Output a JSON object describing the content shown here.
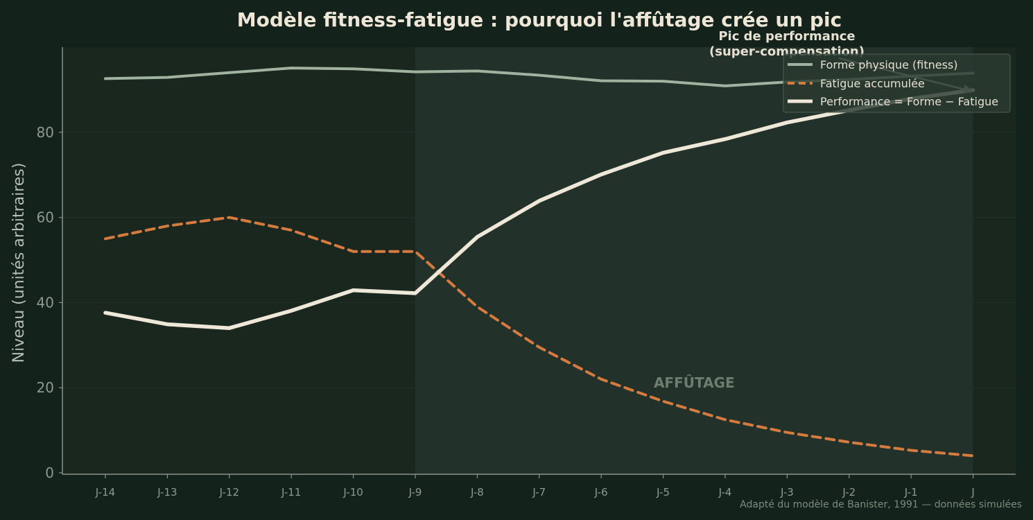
{
  "chart_data": {
    "type": "line",
    "title": "Modèle fitness-fatigue : pourquoi l'affûtage crée un pic",
    "ylabel": "Niveau (unités arbitraires)",
    "xlabel": "",
    "ylim": [
      0,
      100
    ],
    "yticks": [
      0,
      20,
      40,
      60,
      80
    ],
    "grid": true,
    "legend_position": "top-right",
    "categories": [
      "J-14",
      "J-13",
      "J-12",
      "J-11",
      "J-10",
      "J-9",
      "J-8",
      "J-7",
      "J-6",
      "J-5",
      "J-4",
      "J-3",
      "J-2",
      "J-1",
      "J"
    ],
    "series": [
      {
        "name": "Forme physique (fitness)",
        "color": "#9fb39e",
        "style": "solid",
        "values": [
          92.6,
          92.9,
          94,
          95.1,
          94.9,
          94.2,
          94.4,
          93.4,
          92.1,
          92,
          90.9,
          91.8,
          92.4,
          93.2,
          93.9
        ]
      },
      {
        "name": "Fatigue accumulée",
        "color": "#d57b3f",
        "style": "dashed",
        "values": [
          55,
          58,
          60,
          57,
          52,
          52,
          39,
          29.5,
          22,
          16.8,
          12.5,
          9.5,
          7.2,
          5.3,
          4
        ]
      },
      {
        "name": "Performance = Forme − Fatigue",
        "color": "#efe8d8",
        "style": "solid-thick",
        "values": [
          37.6,
          34.9,
          34,
          38.1,
          42.9,
          42.2,
          55.4,
          63.9,
          70.1,
          75.2,
          78.4,
          82.3,
          85.2,
          87.9,
          89.9
        ]
      }
    ],
    "shaded_region": {
      "label": "AFFÛTAGE",
      "from": "J-9",
      "to": "J"
    },
    "annotation": {
      "lines": [
        "Pic de performance",
        "(super-compensation)"
      ],
      "target_category": "J",
      "target_value": 89.9
    },
    "source_note": "Adapté du modèle de Banister, 1991 — données simulées"
  },
  "colors": {
    "background": "#13221a",
    "plot_background": "#1a271f",
    "shaded_background": "#223129",
    "grid": "#223228",
    "axis": "#8a948a"
  }
}
